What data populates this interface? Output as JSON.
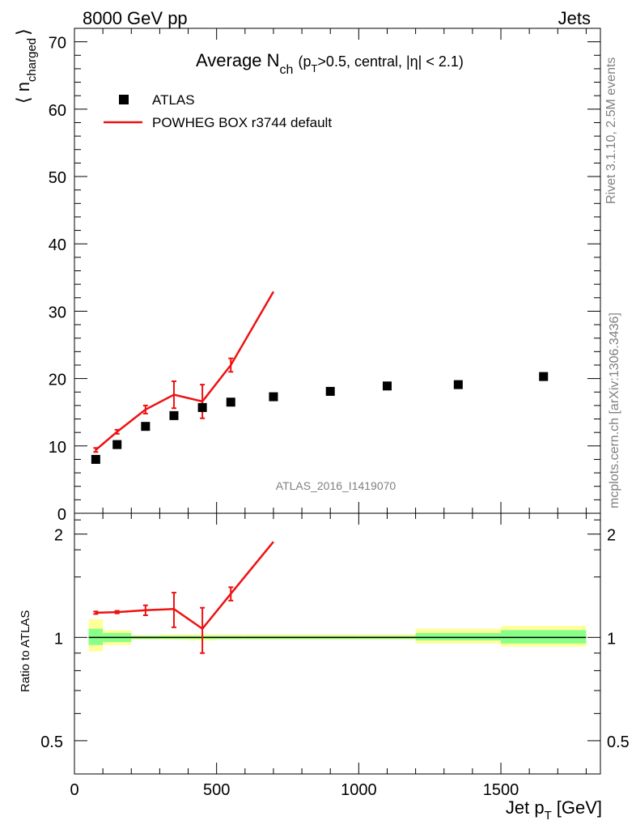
{
  "header": {
    "left": "8000 GeV pp",
    "right": "Jets"
  },
  "side_labels": {
    "rivet": "Rivet 3.1.10,  2.5M events",
    "mcplots": "mcplots.cern.ch [arXiv:1306.3436]"
  },
  "chart_data": [
    {
      "type": "scatter",
      "title": {
        "main": "Average N",
        "sub": "ch",
        "cuts_p": "(p",
        "cuts_sub": "T",
        "cuts_rest": ">0.5, central, |η| < 2.1)"
      },
      "ylabel": {
        "main": "⟨ n",
        "sub": "charged",
        "close": "⟩"
      },
      "xlim": [
        0,
        1850
      ],
      "ylim": [
        0,
        72
      ],
      "yticks": [
        "0",
        "10",
        "20",
        "30",
        "40",
        "50",
        "60",
        "70"
      ],
      "ytick_values": [
        0,
        10,
        20,
        30,
        40,
        50,
        60,
        70
      ],
      "watermark": "ATLAS_2016_I1419070",
      "legend": {
        "position": "top-left",
        "data_label": "ATLAS",
        "mc_label": "POWHEG BOX r3744 default"
      },
      "series": [
        {
          "name": "ATLAS",
          "style": "markers",
          "color": "#000000",
          "x": [
            75,
            150,
            250,
            350,
            450,
            550,
            700,
            900,
            1100,
            1350,
            1650
          ],
          "y": [
            8.0,
            10.2,
            12.9,
            14.5,
            15.7,
            16.5,
            17.3,
            18.1,
            18.9,
            19.1,
            20.3
          ]
        },
        {
          "name": "POWHEG BOX r3744 default",
          "style": "line",
          "color": "#ee1111",
          "x": [
            75,
            150,
            250,
            350,
            450,
            550,
            700
          ],
          "y": [
            9.4,
            12.1,
            15.4,
            17.6,
            16.6,
            22.0,
            32.9
          ],
          "err": [
            0.3,
            0.3,
            0.6,
            2.0,
            2.5,
            1.0,
            0
          ]
        }
      ]
    },
    {
      "type": "line",
      "ylabel": "Ratio to ATLAS",
      "xlabel": {
        "main": "Jet p",
        "sub": "T",
        "unit": "[GeV]"
      },
      "xlim": [
        0,
        1850
      ],
      "ylim": [
        0.4,
        2.3
      ],
      "log_y": true,
      "xticks": [
        "0",
        "500",
        "1000",
        "1500"
      ],
      "xtick_values": [
        0,
        500,
        1000,
        1500
      ],
      "yticks": [
        "0.5",
        "1",
        "2"
      ],
      "ytick_values": [
        0.5,
        1,
        2
      ],
      "reference_line": 1.0,
      "uncertainty_bands": {
        "green_color": "#88ff88",
        "yellow_color": "#ffff99",
        "bins": [
          {
            "x": [
              50,
              100
            ],
            "green": [
              0.95,
              1.06
            ],
            "yellow": [
              0.91,
              1.13
            ]
          },
          {
            "x": [
              100,
              200
            ],
            "green": [
              0.97,
              1.03
            ],
            "yellow": [
              0.95,
              1.05
            ]
          },
          {
            "x": [
              200,
              300
            ],
            "green": [
              0.99,
              1.01
            ],
            "yellow": [
              0.985,
              1.015
            ]
          },
          {
            "x": [
              300,
              400
            ],
            "green": [
              0.99,
              1.01
            ],
            "yellow": [
              0.985,
              1.02
            ]
          },
          {
            "x": [
              400,
              500
            ],
            "green": [
              0.99,
              1.01
            ],
            "yellow": [
              0.98,
              1.02
            ]
          },
          {
            "x": [
              500,
              600
            ],
            "green": [
              0.99,
              1.01
            ],
            "yellow": [
              0.985,
              1.02
            ]
          },
          {
            "x": [
              600,
              800
            ],
            "green": [
              0.99,
              1.01
            ],
            "yellow": [
              0.985,
              1.02
            ]
          },
          {
            "x": [
              800,
              1000
            ],
            "green": [
              0.99,
              1.01
            ],
            "yellow": [
              0.985,
              1.02
            ]
          },
          {
            "x": [
              1000,
              1200
            ],
            "green": [
              0.99,
              1.01
            ],
            "yellow": [
              0.985,
              1.02
            ]
          },
          {
            "x": [
              1200,
              1500
            ],
            "green": [
              0.98,
              1.03
            ],
            "yellow": [
              0.96,
              1.06
            ]
          },
          {
            "x": [
              1500,
              1800
            ],
            "green": [
              0.96,
              1.05
            ],
            "yellow": [
              0.94,
              1.08
            ]
          }
        ]
      },
      "series": [
        {
          "name": "POWHEG BOX r3744 default / ATLAS",
          "color": "#ee1111",
          "x": [
            75,
            150,
            250,
            350,
            450,
            550,
            700
          ],
          "y": [
            1.18,
            1.185,
            1.2,
            1.21,
            1.06,
            1.34,
            1.9
          ],
          "err": [
            0.01,
            0.01,
            0.04,
            0.14,
            0.16,
            0.06,
            0
          ]
        }
      ]
    }
  ]
}
